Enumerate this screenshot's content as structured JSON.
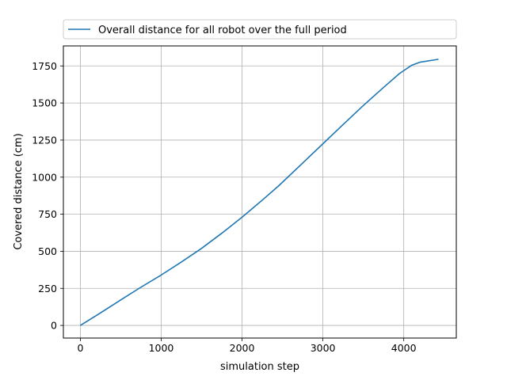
{
  "chart_data": {
    "type": "line",
    "xlabel": "simulation step",
    "ylabel": "Covered distance (cm)",
    "xlim": [
      -210,
      4650
    ],
    "ylim": [
      -85,
      1885
    ],
    "xticks": [
      0,
      1000,
      2000,
      3000,
      4000
    ],
    "yticks": [
      0,
      250,
      500,
      750,
      1000,
      1250,
      1500,
      1750
    ],
    "grid": true,
    "legend_position": "top (above plot)",
    "series": [
      {
        "name": "Overall distance for all robot over the full period",
        "color": "#1f77b4",
        "x": [
          0,
          250,
          500,
          750,
          1000,
          1250,
          1500,
          1750,
          2000,
          2250,
          2450,
          2750,
          3000,
          3250,
          3500,
          3750,
          3950,
          4100,
          4200,
          4430
        ],
        "y": [
          0,
          85,
          172,
          258,
          340,
          428,
          520,
          622,
          730,
          845,
          940,
          1095,
          1225,
          1355,
          1483,
          1605,
          1700,
          1755,
          1775,
          1795
        ]
      }
    ]
  }
}
